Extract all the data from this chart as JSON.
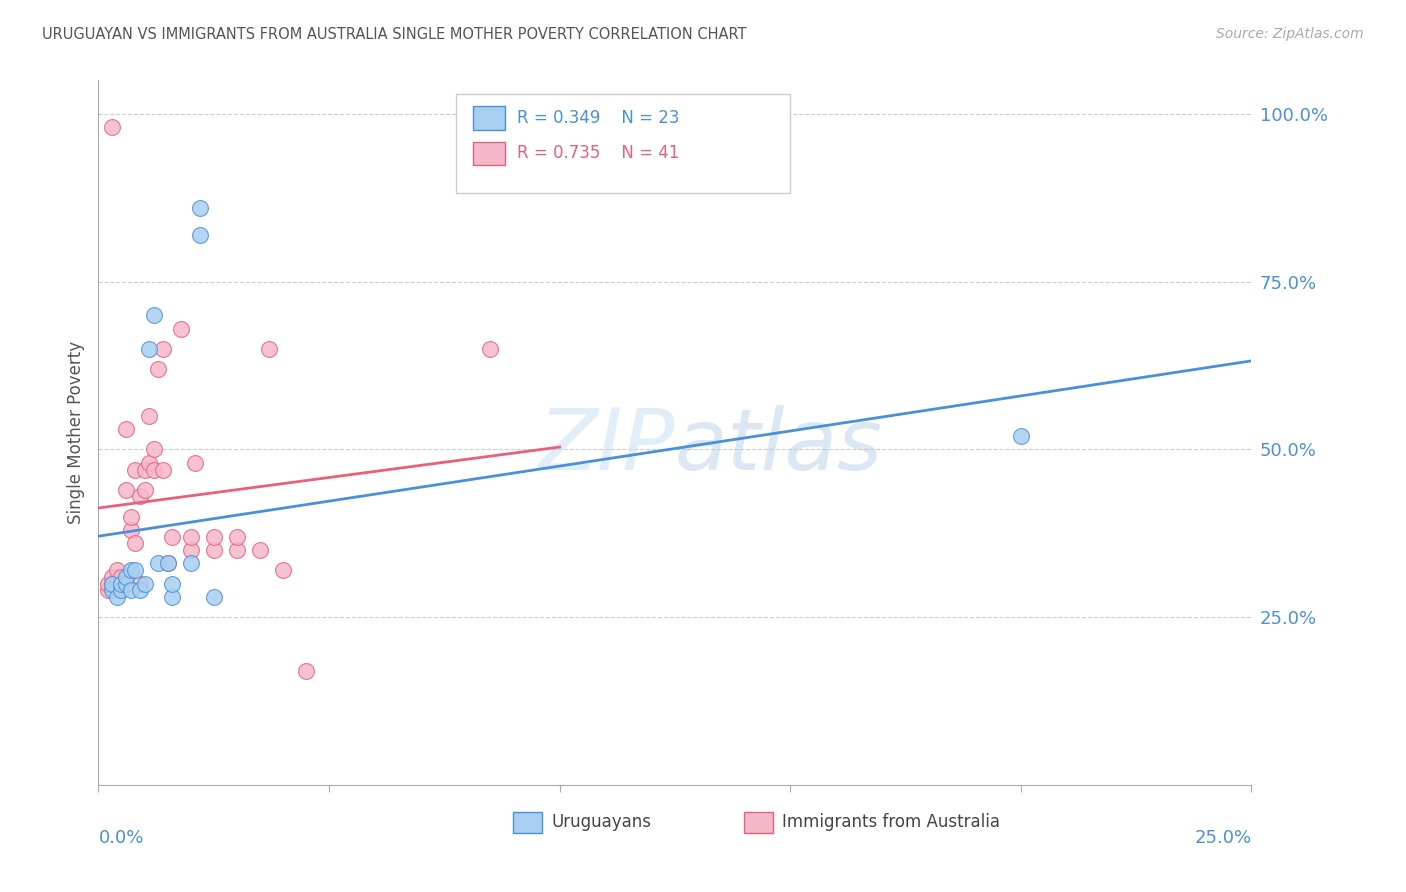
{
  "title": "URUGUAYAN VS IMMIGRANTS FROM AUSTRALIA SINGLE MOTHER POVERTY CORRELATION CHART",
  "source": "Source: ZipAtlas.com",
  "ylabel": "Single Mother Poverty",
  "watermark": "ZIPatlas",
  "x_min": 0.0,
  "x_max": 0.25,
  "y_min": 0.0,
  "y_max": 1.05,
  "y_ticks": [
    0.25,
    0.5,
    0.75,
    1.0
  ],
  "y_tick_labels": [
    "25.0%",
    "50.0%",
    "75.0%",
    "100.0%"
  ],
  "x_tick_labels": [
    "0.0%",
    "25.0%"
  ],
  "legend_r1": "R = 0.349",
  "legend_n1": "N = 23",
  "legend_r2": "R = 0.735",
  "legend_n2": "N = 41",
  "uruguayan_color": "#a8cff0",
  "australia_color": "#f5b8ca",
  "line_color_uru": "#4a90d9",
  "line_color_aus": "#e8607a",
  "bg_color": "#ffffff",
  "grid_color": "#cccccc",
  "axis_label_color": "#4a90d9",
  "title_color": "#555555",
  "uruguayan_x": [
    0.003,
    0.003,
    0.004,
    0.005,
    0.005,
    0.006,
    0.006,
    0.007,
    0.007,
    0.008,
    0.009,
    0.01,
    0.011,
    0.012,
    0.013,
    0.015,
    0.016,
    0.016,
    0.02,
    0.022,
    0.022,
    0.025,
    0.2
  ],
  "uruguayan_y": [
    0.29,
    0.3,
    0.28,
    0.29,
    0.3,
    0.3,
    0.31,
    0.29,
    0.32,
    0.32,
    0.29,
    0.3,
    0.65,
    0.7,
    0.33,
    0.33,
    0.28,
    0.3,
    0.33,
    0.82,
    0.86,
    0.28,
    0.52
  ],
  "australia_x": [
    0.002,
    0.002,
    0.003,
    0.003,
    0.003,
    0.004,
    0.004,
    0.005,
    0.005,
    0.006,
    0.006,
    0.007,
    0.007,
    0.008,
    0.008,
    0.009,
    0.009,
    0.01,
    0.01,
    0.011,
    0.011,
    0.012,
    0.012,
    0.013,
    0.014,
    0.014,
    0.015,
    0.016,
    0.018,
    0.02,
    0.02,
    0.021,
    0.025,
    0.025,
    0.03,
    0.03,
    0.035,
    0.037,
    0.04,
    0.045,
    0.085
  ],
  "australia_y": [
    0.29,
    0.3,
    0.3,
    0.31,
    0.98,
    0.3,
    0.32,
    0.29,
    0.31,
    0.44,
    0.53,
    0.38,
    0.4,
    0.36,
    0.47,
    0.3,
    0.43,
    0.44,
    0.47,
    0.48,
    0.55,
    0.47,
    0.5,
    0.62,
    0.47,
    0.65,
    0.33,
    0.37,
    0.68,
    0.35,
    0.37,
    0.48,
    0.35,
    0.37,
    0.35,
    0.37,
    0.35,
    0.65,
    0.32,
    0.17,
    0.65
  ]
}
